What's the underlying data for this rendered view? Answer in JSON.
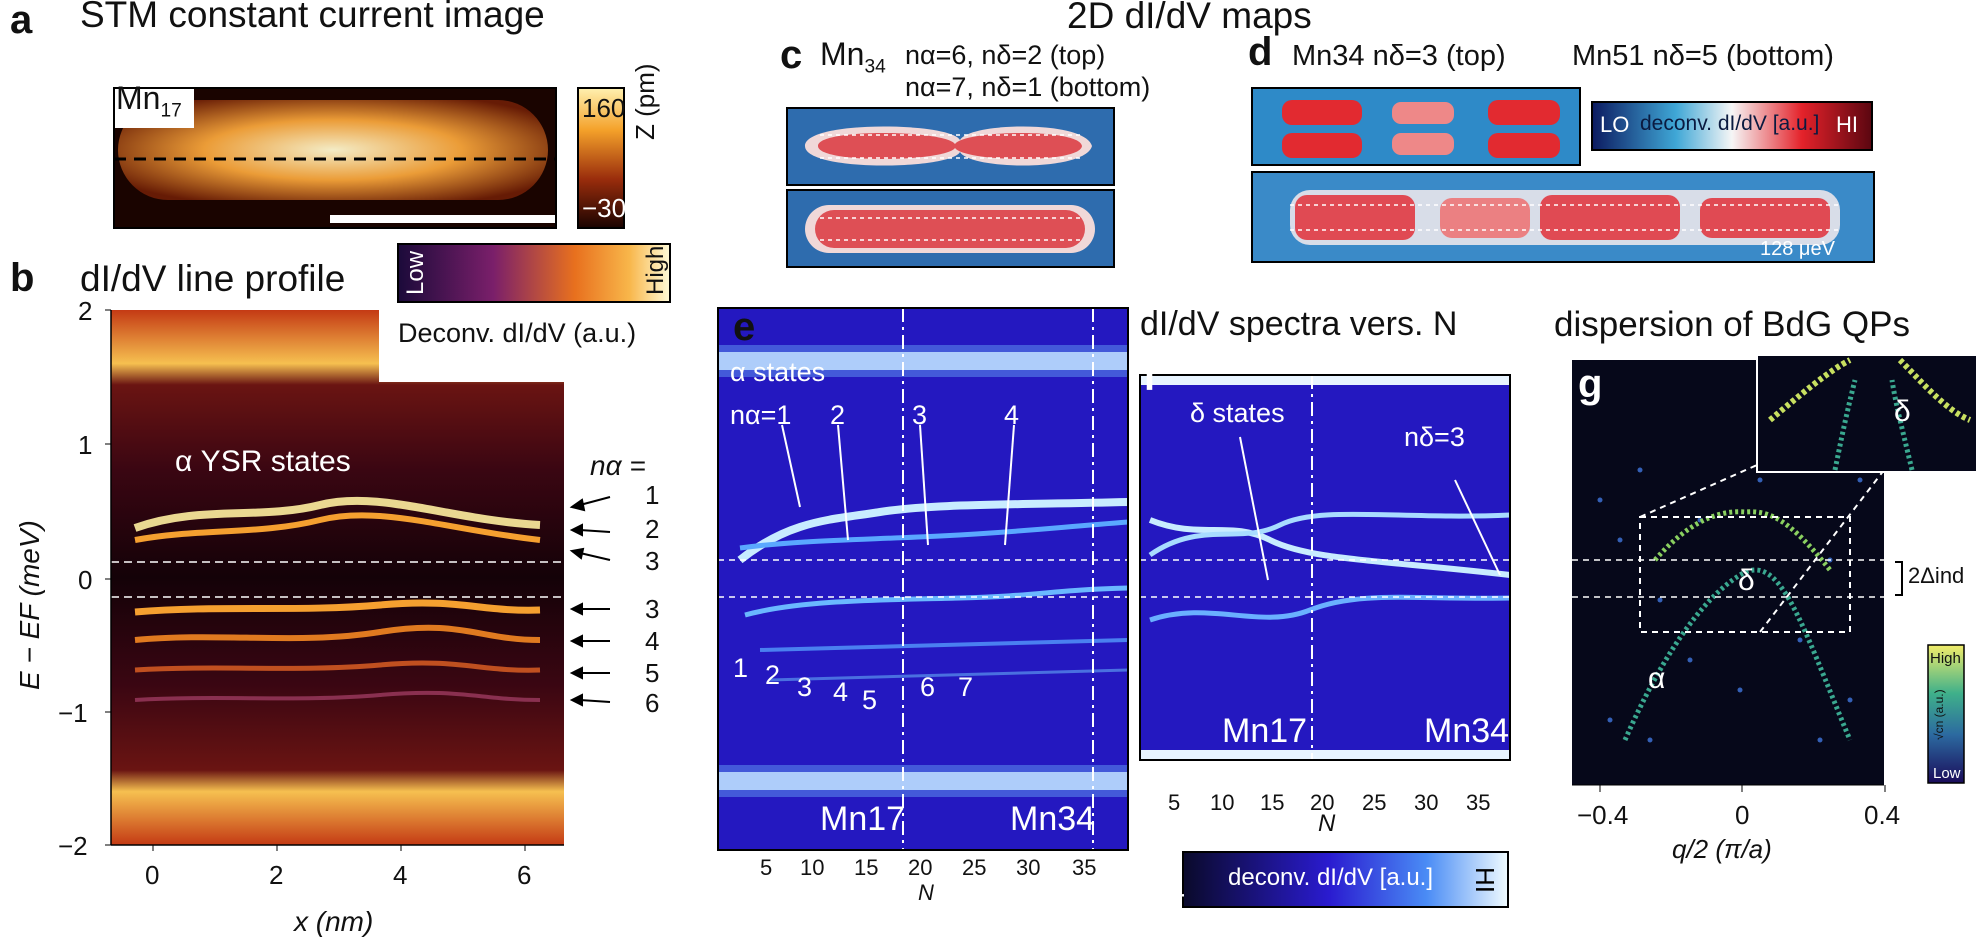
{
  "figure": {
    "super_title": "2D dI/dV maps",
    "panel_a": {
      "letter": "a",
      "title": "STM constant current image",
      "chain_label": "Mn",
      "chain_label_sub": "17",
      "colorbar": {
        "max": "160",
        "min": "−30",
        "label": "Z (pm)"
      }
    },
    "panel_b": {
      "letter": "b",
      "title": "dI/dV line profile",
      "colorbar": {
        "low": "Low",
        "high": "High",
        "label": "Deconv. dI/dV (a.u.)"
      },
      "annotation": "α YSR states",
      "n_alpha_header": "nα =",
      "level_labels": [
        "1",
        "2",
        "3",
        "3",
        "4",
        "5",
        "6"
      ],
      "y_axis_label": "E − EF (meV)",
      "x_axis_label": "x (nm)",
      "y_ticks": [
        "2",
        "1",
        "0",
        "−1",
        "−2"
      ],
      "x_ticks": [
        "0",
        "2",
        "4",
        "6"
      ]
    },
    "panel_c": {
      "letter": "c",
      "chain": "Mn",
      "chain_sub": "34",
      "line1": "nα=6, nδ=2 (top)",
      "line2": "nα=7, nδ=1 (bottom)"
    },
    "panel_d": {
      "letter": "d",
      "left": "Mn34 nδ=3 (top)",
      "right": "Mn51 nδ=5 (bottom)",
      "colorbar": {
        "lo": "LO",
        "label": "deconv. dI/dV [a.u.]",
        "hi": "HI"
      },
      "energy_label": "128 μeV"
    },
    "panel_e": {
      "letter": "e",
      "annotation": "α states",
      "n_labels": [
        "nα=1",
        "2",
        "3",
        "4"
      ],
      "level_numbers": [
        "1",
        "2",
        "3",
        "4",
        "5",
        "6",
        "7"
      ],
      "chain_labels": [
        "Mn17",
        "Mn34"
      ],
      "x_ticks": [
        "5",
        "10",
        "15",
        "20",
        "25",
        "30",
        "35"
      ],
      "x_axis_label": "N"
    },
    "panel_f": {
      "letter": "f",
      "title": "dI/dV spectra vers. N",
      "annotation": "δ states",
      "n_label": "nδ=3",
      "chain_labels": [
        "Mn17",
        "Mn34"
      ],
      "x_ticks": [
        "5",
        "10",
        "15",
        "20",
        "25",
        "30",
        "35"
      ],
      "x_axis_label": "N",
      "colorbar": {
        "lo": "LO",
        "label": "deconv. dI/dV [a.u.]",
        "hi": "HI"
      }
    },
    "panel_g": {
      "letter": "g",
      "title": "dispersion of BdG QPs",
      "labels": {
        "alpha": "α",
        "delta": "δ",
        "gap": "2Δind"
      },
      "colorbar": {
        "high": "High",
        "low": "Low",
        "label": "√cn (a.u.)"
      },
      "x_ticks": [
        "−0.4",
        "0",
        "0.4"
      ],
      "x_axis_label": "q/2 (π/a)"
    }
  }
}
